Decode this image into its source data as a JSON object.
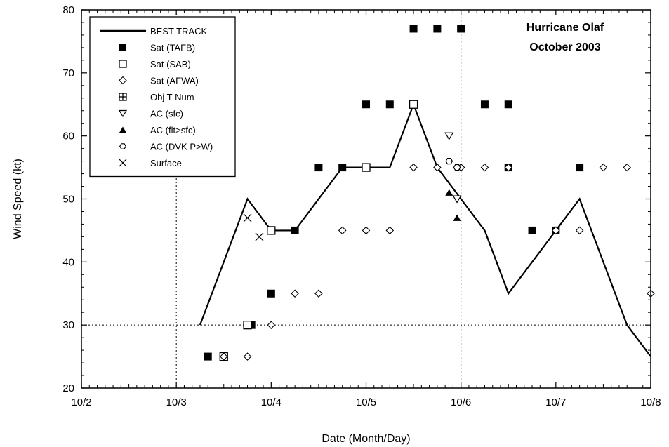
{
  "chart_data": {
    "type": "scatter",
    "title": "Hurricane Olaf",
    "subtitle": "October 2003",
    "xlabel": "Date (Month/Day)",
    "ylabel": "Wind Speed (kt)",
    "xlim": [
      "10/2 00:00",
      "10/8 00:00"
    ],
    "ylim": [
      20,
      80
    ],
    "x_ticks": [
      "10/2",
      "10/3",
      "10/4",
      "10/5",
      "10/6",
      "10/7",
      "10/8"
    ],
    "y_ticks": [
      "20",
      "30",
      "40",
      "50",
      "60",
      "70",
      "80"
    ],
    "grid": {
      "vertical_dotted_at": [
        "10/3",
        "10/5",
        "10/6"
      ],
      "horizontal_dotted_at": [
        30
      ]
    },
    "legend_position": "top-left",
    "colors": {
      "line": "#000000",
      "marker": "#000000"
    },
    "series": [
      {
        "name": "BEST TRACK",
        "kind": "line",
        "points": [
          [
            "10/3 06:00",
            30
          ],
          [
            "10/3 18:00",
            50
          ],
          [
            "10/4 00:00",
            45
          ],
          [
            "10/4 06:00",
            45
          ],
          [
            "10/4 18:00",
            55
          ],
          [
            "10/5 00:00",
            55
          ],
          [
            "10/5 06:00",
            55
          ],
          [
            "10/5 12:00",
            65
          ],
          [
            "10/5 18:00",
            55
          ],
          [
            "10/6 00:00",
            50
          ],
          [
            "10/6 06:00",
            45
          ],
          [
            "10/6 12:00",
            35
          ],
          [
            "10/7 00:00",
            45
          ],
          [
            "10/7 06:00",
            50
          ],
          [
            "10/7 18:00",
            30
          ],
          [
            "10/8 00:00",
            25
          ]
        ]
      },
      {
        "name": "Sat (TAFB)",
        "kind": "filled-square",
        "points": [
          [
            "10/3 08:00",
            25
          ],
          [
            "10/3 19:00",
            30
          ],
          [
            "10/4 00:00",
            35
          ],
          [
            "10/4 06:00",
            45
          ],
          [
            "10/4 12:00",
            55
          ],
          [
            "10/4 18:00",
            55
          ],
          [
            "10/5 00:00",
            65
          ],
          [
            "10/5 06:00",
            65
          ],
          [
            "10/5 12:00",
            77
          ],
          [
            "10/5 18:00",
            77
          ],
          [
            "10/6 00:00",
            77
          ],
          [
            "10/6 06:00",
            65
          ],
          [
            "10/6 12:00",
            65
          ],
          [
            "10/6 12:00",
            55
          ],
          [
            "10/6 18:00",
            45
          ],
          [
            "10/7 00:00",
            45
          ],
          [
            "10/7 06:00",
            55
          ]
        ]
      },
      {
        "name": "Sat (SAB)",
        "kind": "open-square",
        "points": [
          [
            "10/3 12:00",
            25
          ],
          [
            "10/3 18:00",
            30
          ],
          [
            "10/4 00:00",
            45
          ],
          [
            "10/5 00:00",
            55
          ],
          [
            "10/5 12:00",
            65
          ]
        ]
      },
      {
        "name": "Sat (AFWA)",
        "kind": "open-diamond",
        "points": [
          [
            "10/3 12:00",
            25
          ],
          [
            "10/3 18:00",
            25
          ],
          [
            "10/4 00:00",
            30
          ],
          [
            "10/4 06:00",
            35
          ],
          [
            "10/4 12:00",
            35
          ],
          [
            "10/4 18:00",
            45
          ],
          [
            "10/5 00:00",
            45
          ],
          [
            "10/5 06:00",
            45
          ],
          [
            "10/5 12:00",
            55
          ],
          [
            "10/5 18:00",
            55
          ],
          [
            "10/6 00:00",
            55
          ],
          [
            "10/6 06:00",
            55
          ],
          [
            "10/6 12:00",
            55
          ],
          [
            "10/7 00:00",
            45
          ],
          [
            "10/7 06:00",
            45
          ],
          [
            "10/7 12:00",
            55
          ],
          [
            "10/7 18:00",
            55
          ],
          [
            "10/8 00:00",
            35
          ]
        ]
      },
      {
        "name": "Obj T-Num",
        "kind": "crossed-square",
        "points": []
      },
      {
        "name": "AC (sfc)",
        "kind": "open-triangle-down",
        "points": [
          [
            "10/5 21:00",
            60
          ],
          [
            "10/5 23:00",
            50
          ]
        ]
      },
      {
        "name": "AC (flt>sfc)",
        "kind": "filled-triangle-up",
        "points": [
          [
            "10/5 21:00",
            51
          ],
          [
            "10/5 23:00",
            47
          ]
        ]
      },
      {
        "name": "AC (DVK P>W)",
        "kind": "open-hexagon",
        "points": [
          [
            "10/5 21:00",
            56
          ],
          [
            "10/5 23:00",
            55
          ]
        ]
      },
      {
        "name": "Surface",
        "kind": "x-cross",
        "points": [
          [
            "10/3 18:00",
            47
          ],
          [
            "10/3 21:00",
            44
          ]
        ]
      }
    ]
  }
}
